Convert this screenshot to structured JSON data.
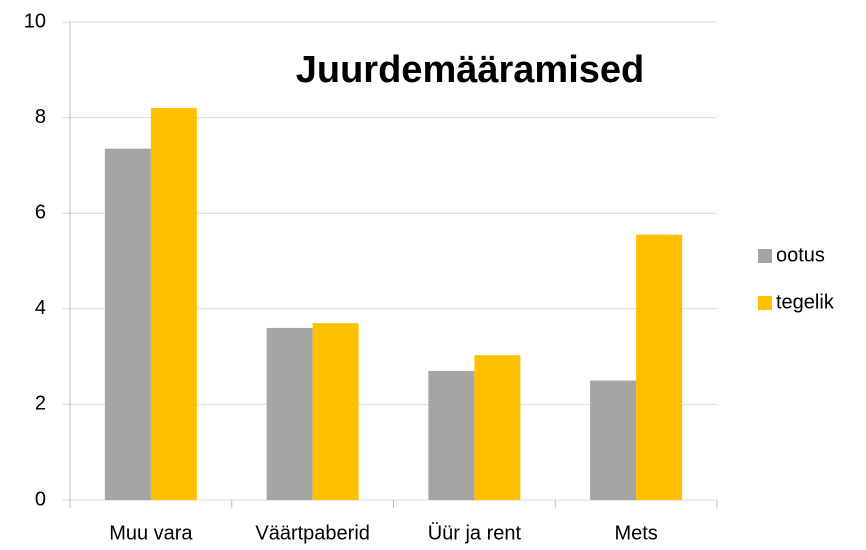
{
  "chart_data": {
    "type": "bar",
    "title": "Juurdemääramised",
    "categories": [
      "Muu vara",
      "Väärtpaberid",
      "Üür ja rent",
      "Mets"
    ],
    "series": [
      {
        "name": "ootus",
        "color": "#a5a5a5",
        "values": [
          7.35,
          3.6,
          2.7,
          2.5
        ]
      },
      {
        "name": "tegelik",
        "color": "#ffc000",
        "values": [
          8.2,
          3.7,
          3.03,
          5.55
        ]
      }
    ],
    "ylim": [
      0,
      10
    ],
    "yticks": [
      0,
      2,
      4,
      6,
      8,
      10
    ],
    "grid": true,
    "legend": "right"
  }
}
